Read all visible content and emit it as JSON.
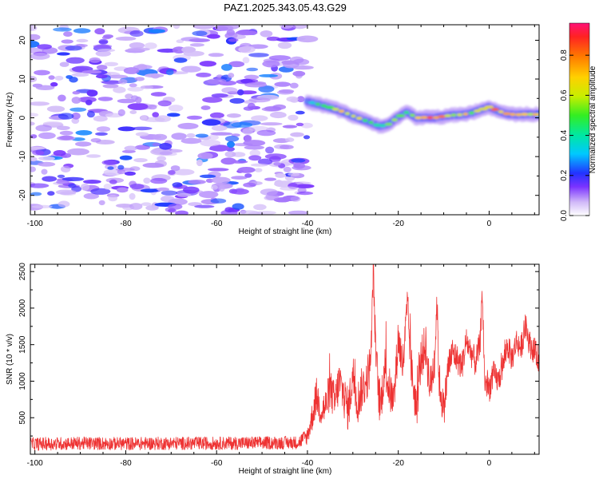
{
  "title": "PAZ1.2025.343.05.43.G29",
  "chart_data": [
    {
      "type": "heatmap",
      "name": "spectrogram",
      "xlabel": "Height of straight line (km)",
      "ylabel": "Frequency (Hz)",
      "xlim": [
        -101,
        11
      ],
      "ylim": [
        -25,
        24
      ],
      "xticks": [
        -100,
        -80,
        -60,
        -40,
        -20,
        0
      ],
      "yticks": [
        -20,
        -10,
        0,
        10,
        20
      ],
      "colorbar": {
        "label": "Normalized spectral amplitude",
        "range": [
          0,
          0.96
        ],
        "ticks": [
          "0.0",
          "0.2",
          "0.4",
          "0.6",
          "0.8"
        ],
        "tick_values": [
          0,
          0.2,
          0.4,
          0.6,
          0.8
        ]
      },
      "noise_region": {
        "x_range": [
          -101,
          -40
        ],
        "y_range": [
          -25,
          24
        ],
        "amplitude_range": [
          0.05,
          0.3
        ]
      },
      "signal_track": {
        "x": [
          -40,
          -38,
          -36,
          -34,
          -32,
          -30,
          -28,
          -26,
          -24,
          -22,
          -20,
          -18,
          -16,
          -14,
          -12,
          -10,
          -8,
          -6,
          -4,
          -2,
          0,
          2,
          4,
          6,
          8,
          10,
          11
        ],
        "frequency": [
          4.2,
          3.6,
          3.0,
          2.3,
          1.5,
          0.5,
          -0.4,
          -1.2,
          -2.2,
          -1.6,
          0.2,
          1.5,
          0.0,
          0.1,
          0.0,
          0.4,
          0.7,
          0.8,
          1.2,
          2.0,
          2.8,
          1.8,
          1.0,
          0.8,
          0.9,
          0.9,
          0.8
        ],
        "peak_amplitude": [
          0.3,
          0.5,
          0.6,
          0.7,
          0.75,
          0.8,
          0.6,
          0.5,
          0.5,
          0.6,
          0.55,
          0.6,
          0.85,
          0.9,
          0.95,
          0.8,
          0.75,
          0.8,
          0.6,
          0.7,
          0.8,
          0.9,
          0.85,
          0.8,
          0.7,
          0.9,
          0.9
        ]
      }
    },
    {
      "type": "line",
      "name": "snr",
      "xlabel": "Height of straight line (km)",
      "ylabel": "SNR (10 * v/v)",
      "xlim": [
        -101,
        11
      ],
      "ylim": [
        0,
        2600
      ],
      "xticks": [
        -100,
        -80,
        -60,
        -40,
        -20,
        0
      ],
      "yticks": [
        500,
        1000,
        1500,
        2000,
        2500
      ],
      "series": [
        {
          "name": "SNR",
          "color": "#ee3333",
          "x": [
            -101,
            -90,
            -80,
            -70,
            -60,
            -50,
            -42,
            -40,
            -39,
            -38,
            -37,
            -36,
            -35,
            -34,
            -33,
            -32,
            -31,
            -30,
            -29,
            -28,
            -27,
            -26,
            -25.5,
            -25,
            -24.5,
            -24,
            -23,
            -22,
            -21,
            -20,
            -19,
            -18,
            -17,
            -16,
            -15,
            -14,
            -13,
            -12,
            -11.5,
            -11,
            -10,
            -9,
            -8,
            -7,
            -6,
            -5,
            -4,
            -3,
            -2,
            -1.5,
            -1,
            0,
            1,
            2,
            3,
            4,
            5,
            6,
            7,
            8,
            9,
            10,
            11
          ],
          "values": [
            140,
            150,
            145,
            150,
            150,
            155,
            160,
            250,
            500,
            800,
            600,
            650,
            900,
            700,
            1000,
            800,
            600,
            1100,
            700,
            900,
            1000,
            1300,
            2600,
            1400,
            1000,
            600,
            1200,
            900,
            700,
            1600,
            1200,
            2000,
            1100,
            600,
            1300,
            1500,
            900,
            1300,
            2100,
            1000,
            600,
            1200,
            1400,
            1300,
            1200,
            1550,
            1400,
            1250,
            1500,
            2250,
            1000,
            900,
            1100,
            1000,
            1200,
            1500,
            1300,
            1550,
            1450,
            1750,
            1500,
            1400,
            1300
          ],
          "noise_amplitude": [
            90,
            90,
            90,
            90,
            90,
            90,
            90,
            120,
            200,
            250,
            250,
            250,
            280,
            280,
            300,
            300,
            300,
            300,
            300,
            300,
            300,
            300,
            250,
            300,
            300,
            300,
            300,
            300,
            300,
            300,
            300,
            300,
            300,
            300,
            300,
            300,
            300,
            300,
            250,
            300,
            250,
            250,
            220,
            200,
            200,
            200,
            200,
            200,
            200,
            200,
            200,
            200,
            180,
            180,
            180,
            180,
            180,
            180,
            180,
            180,
            180,
            180,
            180
          ]
        }
      ]
    }
  ]
}
